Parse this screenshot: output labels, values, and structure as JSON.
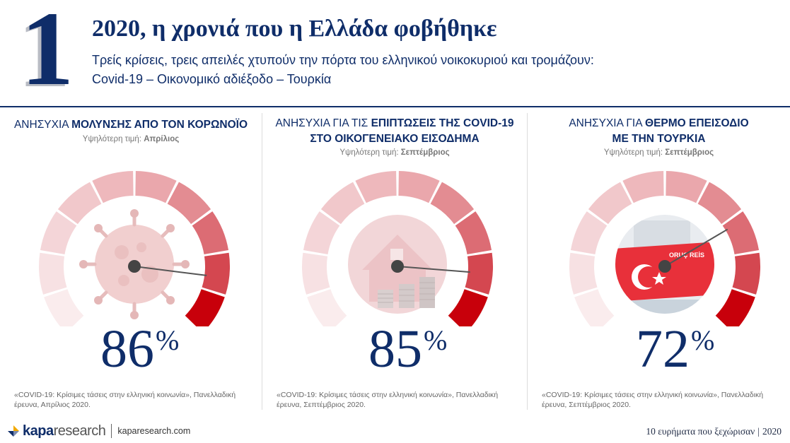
{
  "header": {
    "number": "1",
    "title": "2020, η χρονιά που η Ελλάδα φοβήθηκε",
    "subtitle_line1": "Τρείς κρίσεις, τρεις απειλές χτυπούν την πόρτα του ελληνικού νοικοκυριού και τρομάζουν:",
    "subtitle_line2": "Covid-19 – Οικονομικό αδιέξοδο – Τουρκία"
  },
  "panels": [
    {
      "title_prefix": "ΑΝΗΣΥΧΙΑ ",
      "title_bold": "ΜΟΛΥΝΣΗΣ ΑΠΟ ΤΟΝ ΚΟΡΩΝΟΪΟ",
      "title_line2": "",
      "peak_label": "Υψηλότερη τιμή: ",
      "peak_value": "Απρίλιος",
      "percent": "86",
      "percent_sign": "%",
      "value": 86,
      "image_icon": "virus-icon",
      "source": "«COVID-19: Κρίσιμες τάσεις στην ελληνική κοινωνία», Πανελλαδική έρευνα, Απρίλιος 2020."
    },
    {
      "title_prefix": "ΑΝΗΣΥΧΙΑ ΓΙΑ ΤΙΣ ",
      "title_bold": "ΕΠΙΠΤΩΣΕΙΣ ΤΗΣ COVID-19",
      "title_line2": "ΣΤΟ ΟΙΚΟΓΕΝΕΙΑΚΟ ΕΙΣΟΔΗΜΑ",
      "peak_label": "Υψηλότερη τιμή: ",
      "peak_value": "Σεπτέμβριος",
      "percent": "85",
      "percent_sign": "%",
      "value": 85,
      "image_icon": "house-coins-icon",
      "source": "«COVID-19: Κρίσιμες τάσεις στην ελληνική κοινωνία», Πανελλαδική έρευνα, Σεπτέμβριος 2020."
    },
    {
      "title_prefix": "ΑΝΗΣΥΧΙΑ ΓΙΑ ",
      "title_bold": "ΘΕΡΜΟ ΕΠΕΙΣΟΔΙΟ",
      "title_line2": "ΜΕ ΤΗΝ ΤΟΥΡΚΙΑ",
      "peak_label": "Υψηλότερη τιμή: ",
      "peak_value": "Σεπτέμβριος",
      "percent": "72",
      "percent_sign": "%",
      "value": 72,
      "image_icon": "ship-icon",
      "ship_text": "ORUÇ REİS",
      "source": "«COVID-19: Κρίσιμες τάσεις στην ελληνική κοινωνία», Πανελλαδική έρευνα, Σεπτέμβριος 2020."
    }
  ],
  "gauge_colors": [
    "#faeced",
    "#f7e1e3",
    "#f4d5d8",
    "#f1c8cb",
    "#eeb8bc",
    "#eaa7ac",
    "#e38c92",
    "#dc6c74",
    "#d44750",
    "#c8000b"
  ],
  "footer": {
    "logo_bold": "kapa",
    "logo_light": "research",
    "url": "kaparesearch.com",
    "right_text": "10 ευρήματα που ξεχώρισαν",
    "sep": "|",
    "year": "2020"
  }
}
